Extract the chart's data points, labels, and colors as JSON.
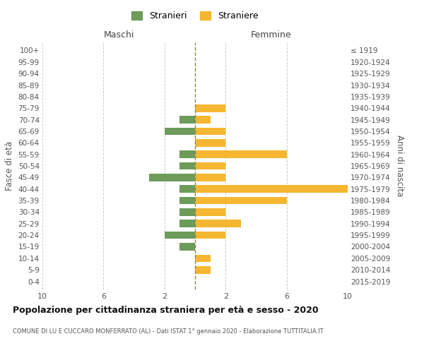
{
  "age_groups": [
    "0-4",
    "5-9",
    "10-14",
    "15-19",
    "20-24",
    "25-29",
    "30-34",
    "35-39",
    "40-44",
    "45-49",
    "50-54",
    "55-59",
    "60-64",
    "65-69",
    "70-74",
    "75-79",
    "80-84",
    "85-89",
    "90-94",
    "95-99",
    "100+"
  ],
  "birth_years": [
    "2015-2019",
    "2010-2014",
    "2005-2009",
    "2000-2004",
    "1995-1999",
    "1990-1994",
    "1985-1989",
    "1980-1984",
    "1975-1979",
    "1970-1974",
    "1965-1969",
    "1960-1964",
    "1955-1959",
    "1950-1954",
    "1945-1949",
    "1940-1944",
    "1935-1939",
    "1930-1934",
    "1925-1929",
    "1920-1924",
    "≤ 1919"
  ],
  "males": [
    0,
    0,
    0,
    1,
    2,
    1,
    1,
    1,
    1,
    3,
    1,
    1,
    0,
    2,
    1,
    0,
    0,
    0,
    0,
    0,
    0
  ],
  "females": [
    0,
    1,
    1,
    0,
    2,
    3,
    2,
    6,
    10,
    2,
    2,
    6,
    2,
    2,
    1,
    2,
    0,
    0,
    0,
    0,
    0
  ],
  "male_color": "#6d9b5a",
  "female_color": "#f5b731",
  "dashed_line_color": "#8b8b4e",
  "background_color": "#ffffff",
  "grid_color": "#cccccc",
  "title": "Popolazione per cittadinanza straniera per età e sesso - 2020",
  "subtitle": "COMUNE DI LU E CUCCARO MONFERRATO (AL) - Dati ISTAT 1° gennaio 2020 - Elaborazione TUTTITALIA.IT",
  "legend_males": "Stranieri",
  "legend_females": "Straniere",
  "xlim": 10,
  "xlabel_left": "Maschi",
  "xlabel_right": "Femmine",
  "ylabel_left": "Fasce di età",
  "ylabel_right": "Anni di nascita"
}
